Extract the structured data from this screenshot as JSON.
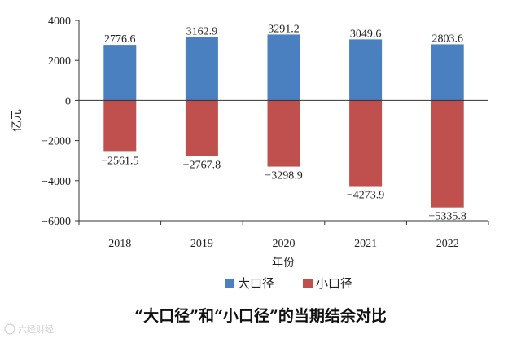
{
  "chart_data": {
    "type": "bar",
    "stacked": true,
    "categories": [
      "2018",
      "2019",
      "2020",
      "2021",
      "2022"
    ],
    "series": [
      {
        "name": "大口径",
        "color": "#4a7fc0",
        "values": [
          2776.6,
          3162.9,
          3291.2,
          3049.6,
          2803.6
        ],
        "labels": [
          "2776.6",
          "3162.9",
          "3291.2",
          "3049.6",
          "2803.6"
        ]
      },
      {
        "name": "小口径",
        "color": "#c0504d",
        "values": [
          -2561.5,
          -2767.8,
          -3298.9,
          -4273.9,
          -5335.8
        ],
        "labels": [
          "−2561.5",
          "−2767.8",
          "−3298.9",
          "−4273.9",
          "−5335.8"
        ]
      }
    ],
    "ylim": [
      -6000,
      4000
    ],
    "yticks": [
      4000,
      2000,
      0,
      -2000,
      -4000,
      -6000
    ],
    "ytick_labels": [
      "4000",
      "2000",
      "0",
      "−2000",
      "−4000",
      "−6000"
    ],
    "xlabel": "年份",
    "ylabel": "亿元",
    "grid": false,
    "legend": "bottom-center",
    "caption": "“大口径”和“小口径”的当期结余对比"
  },
  "watermark": "六经财经",
  "watermark_icon": "weibo-icon"
}
